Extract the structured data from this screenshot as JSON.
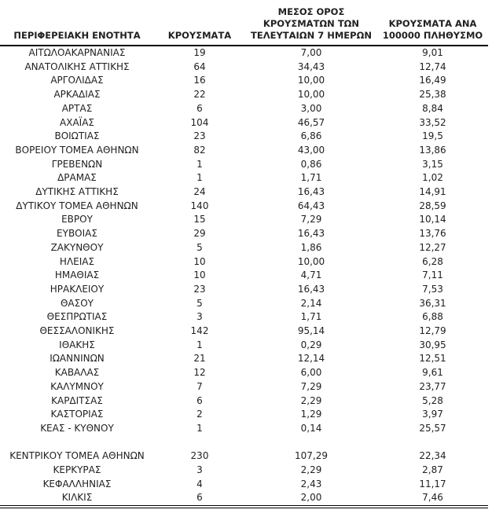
{
  "colors": {
    "background": "#ffffff",
    "text": "#212121",
    "rule": "#000000"
  },
  "table": {
    "columns": [
      {
        "label": "ΠΕΡΙΦΕΡΕΙΑΚΗ ΕΝΟΤΗΤΑ"
      },
      {
        "label": "ΚΡΟΥΣΜΑΤΑ"
      },
      {
        "label": "ΜΕΣΟΣ ΟΡΟΣ\nΚΡΟΥΣΜΑΤΩΝ ΤΩΝ\nΤΕΛΕΥΤΑΙΩΝ 7 ΗΜΕΡΩΝ"
      },
      {
        "label": "ΚΡΟΥΣΜΑΤΑ ΑΝΑ\n100000 ΠΛΗΘΥΣΜΟ"
      }
    ],
    "rows": [
      [
        "ΑΙΤΩΛΟΑΚΑΡΝΑΝΙΑΣ",
        "19",
        "7,00",
        "9,01"
      ],
      [
        "ΑΝΑΤΟΛΙΚΗΣ ΑΤΤΙΚΗΣ",
        "64",
        "34,43",
        "12,74"
      ],
      [
        "ΑΡΓΟΛΙΔΑΣ",
        "16",
        "10,00",
        "16,49"
      ],
      [
        "ΑΡΚΑΔΙΑΣ",
        "22",
        "10,00",
        "25,38"
      ],
      [
        "ΑΡΤΑΣ",
        "6",
        "3,00",
        "8,84"
      ],
      [
        "ΑΧΑΪΑΣ",
        "104",
        "46,57",
        "33,52"
      ],
      [
        "ΒΟΙΩΤΙΑΣ",
        "23",
        "6,86",
        "19,5"
      ],
      [
        "ΒΟΡΕΙΟΥ ΤΟΜΕΑ ΑΘΗΝΩΝ",
        "82",
        "43,00",
        "13,86"
      ],
      [
        "ΓΡΕΒΕΝΩΝ",
        "1",
        "0,86",
        "3,15"
      ],
      [
        "ΔΡΑΜΑΣ",
        "1",
        "1,71",
        "1,02"
      ],
      [
        "ΔΥΤΙΚΗΣ ΑΤΤΙΚΗΣ",
        "24",
        "16,43",
        "14,91"
      ],
      [
        "ΔΥΤΙΚΟΥ ΤΟΜΕΑ ΑΘΗΝΩΝ",
        "140",
        "64,43",
        "28,59"
      ],
      [
        "ΕΒΡΟΥ",
        "15",
        "7,29",
        "10,14"
      ],
      [
        "ΕΥΒΟΙΑΣ",
        "29",
        "16,43",
        "13,76"
      ],
      [
        "ΖΑΚΥΝΘΟΥ",
        "5",
        "1,86",
        "12,27"
      ],
      [
        "ΗΛΕΙΑΣ",
        "10",
        "10,00",
        "6,28"
      ],
      [
        "ΗΜΑΘΙΑΣ",
        "10",
        "4,71",
        "7,11"
      ],
      [
        "ΗΡΑΚΛΕΙΟΥ",
        "23",
        "16,43",
        "7,53"
      ],
      [
        "ΘΑΣΟΥ",
        "5",
        "2,14",
        "36,31"
      ],
      [
        "ΘΕΣΠΡΩΤΙΑΣ",
        "3",
        "1,71",
        "6,88"
      ],
      [
        "ΘΕΣΣΑΛΟΝΙΚΗΣ",
        "142",
        "95,14",
        "12,79"
      ],
      [
        "ΙΘΑΚΗΣ",
        "1",
        "0,29",
        "30,95"
      ],
      [
        "ΙΩΑΝΝΙΝΩΝ",
        "21",
        "12,14",
        "12,51"
      ],
      [
        "ΚΑΒΑΛΑΣ",
        "12",
        "6,00",
        "9,61"
      ],
      [
        "ΚΑΛΥΜΝΟΥ",
        "7",
        "7,29",
        "23,77"
      ],
      [
        "ΚΑΡΔΙΤΣΑΣ",
        "6",
        "2,29",
        "5,28"
      ],
      [
        "ΚΑΣΤΟΡΙΑΣ",
        "2",
        "1,29",
        "3,97"
      ],
      [
        "ΚΕΑΣ - ΚΥΘΝΟΥ",
        "1",
        "0,14",
        "25,57"
      ],
      [
        "",
        "",
        "",
        ""
      ],
      [
        "ΚΕΝΤΡΙΚΟΥ ΤΟΜΕΑ ΑΘΗΝΩΝ",
        "230",
        "107,29",
        "22,34"
      ],
      [
        "ΚΕΡΚΥΡΑΣ",
        "3",
        "2,29",
        "2,87"
      ],
      [
        "ΚΕΦΑΛΛΗΝΙΑΣ",
        "4",
        "2,43",
        "11,17"
      ],
      [
        "ΚΙΛΚΙΣ",
        "6",
        "2,00",
        "7,46"
      ]
    ]
  }
}
